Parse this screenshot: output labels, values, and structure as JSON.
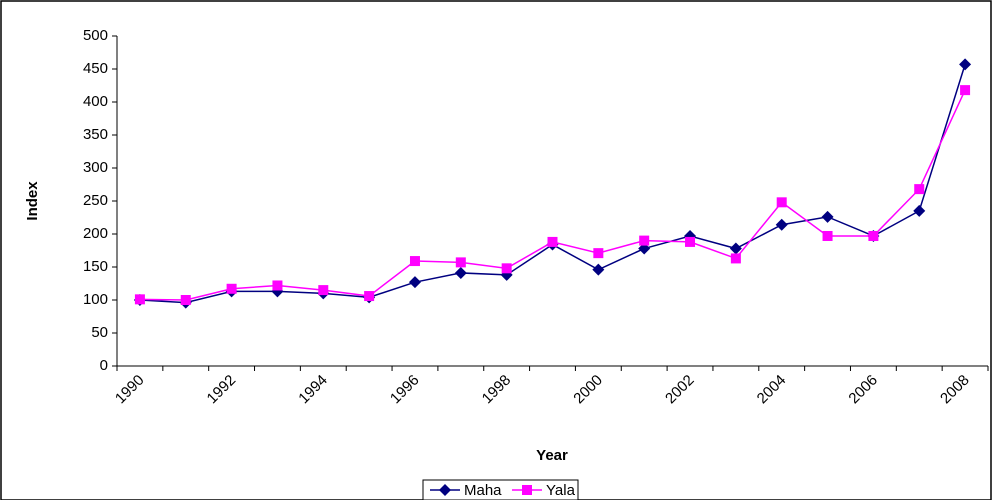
{
  "chart_data": {
    "type": "line",
    "x_label": "Year",
    "y_label": "Index",
    "categories": [
      "1990",
      null,
      "1992",
      null,
      "1994",
      null,
      "1996",
      null,
      "1998",
      null,
      "2000",
      null,
      "2002",
      null,
      "2004",
      null,
      "2006",
      null,
      "2008"
    ],
    "series": [
      {
        "name": "Maha",
        "color": "#000080",
        "marker": "diamond",
        "values": [
          100,
          96,
          113,
          113,
          110,
          104,
          127,
          141,
          138,
          184,
          146,
          178,
          197,
          178,
          214,
          226,
          197,
          235,
          457
        ]
      },
      {
        "name": "Yala",
        "color": "#ff00ff",
        "marker": "square",
        "values": [
          101,
          100,
          117,
          122,
          115,
          106,
          159,
          157,
          148,
          188,
          171,
          190,
          188,
          163,
          248,
          197,
          197,
          268,
          418
        ]
      }
    ],
    "ylim": [
      0,
      500
    ],
    "yticks": [
      0,
      50,
      100,
      150,
      200,
      250,
      300,
      350,
      400,
      450,
      500
    ],
    "grid": false,
    "legend": "bottom"
  }
}
